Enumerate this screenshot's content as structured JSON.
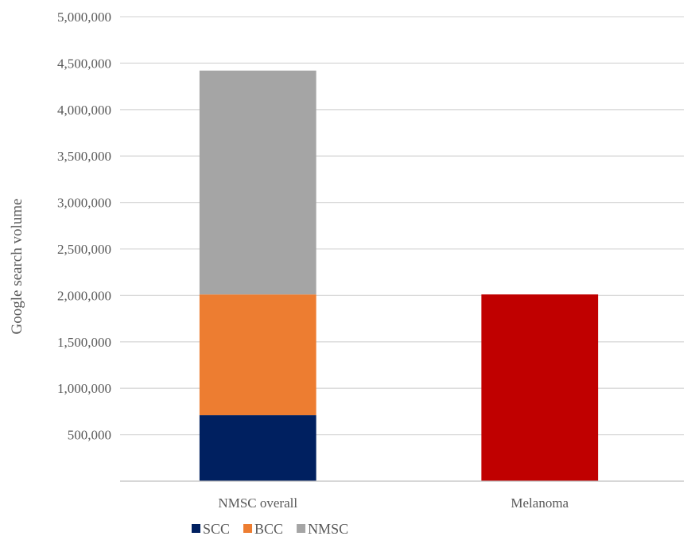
{
  "chart_data": {
    "type": "bar",
    "stacked": true,
    "categories": [
      "NMSC overall",
      "Melanoma"
    ],
    "ylabel": "Google search volume",
    "xlabel": "",
    "ylim": [
      0,
      5000000
    ],
    "yticks": [
      500000,
      1000000,
      1500000,
      2000000,
      2500000,
      3000000,
      3500000,
      4000000,
      4500000,
      5000000
    ],
    "ytick_labels": [
      "500,000",
      "1,000,000",
      "1,500,000",
      "2,000,000",
      "2,500,000",
      "3,000,000",
      "3,500,000",
      "4,000,000",
      "4,500,000",
      "5,000,000"
    ],
    "grid": true,
    "legend_position": "bottom-left",
    "series": [
      {
        "name": "SCC",
        "color": "#002060",
        "values": [
          710000,
          0
        ]
      },
      {
        "name": "BCC",
        "color": "#ED7D31",
        "values": [
          1300000,
          0
        ]
      },
      {
        "name": "NMSC",
        "color": "#A5A5A5",
        "values": [
          2410000,
          0
        ]
      },
      {
        "name": "",
        "color": "#C00000",
        "values": [
          0,
          2010000
        ]
      }
    ]
  }
}
